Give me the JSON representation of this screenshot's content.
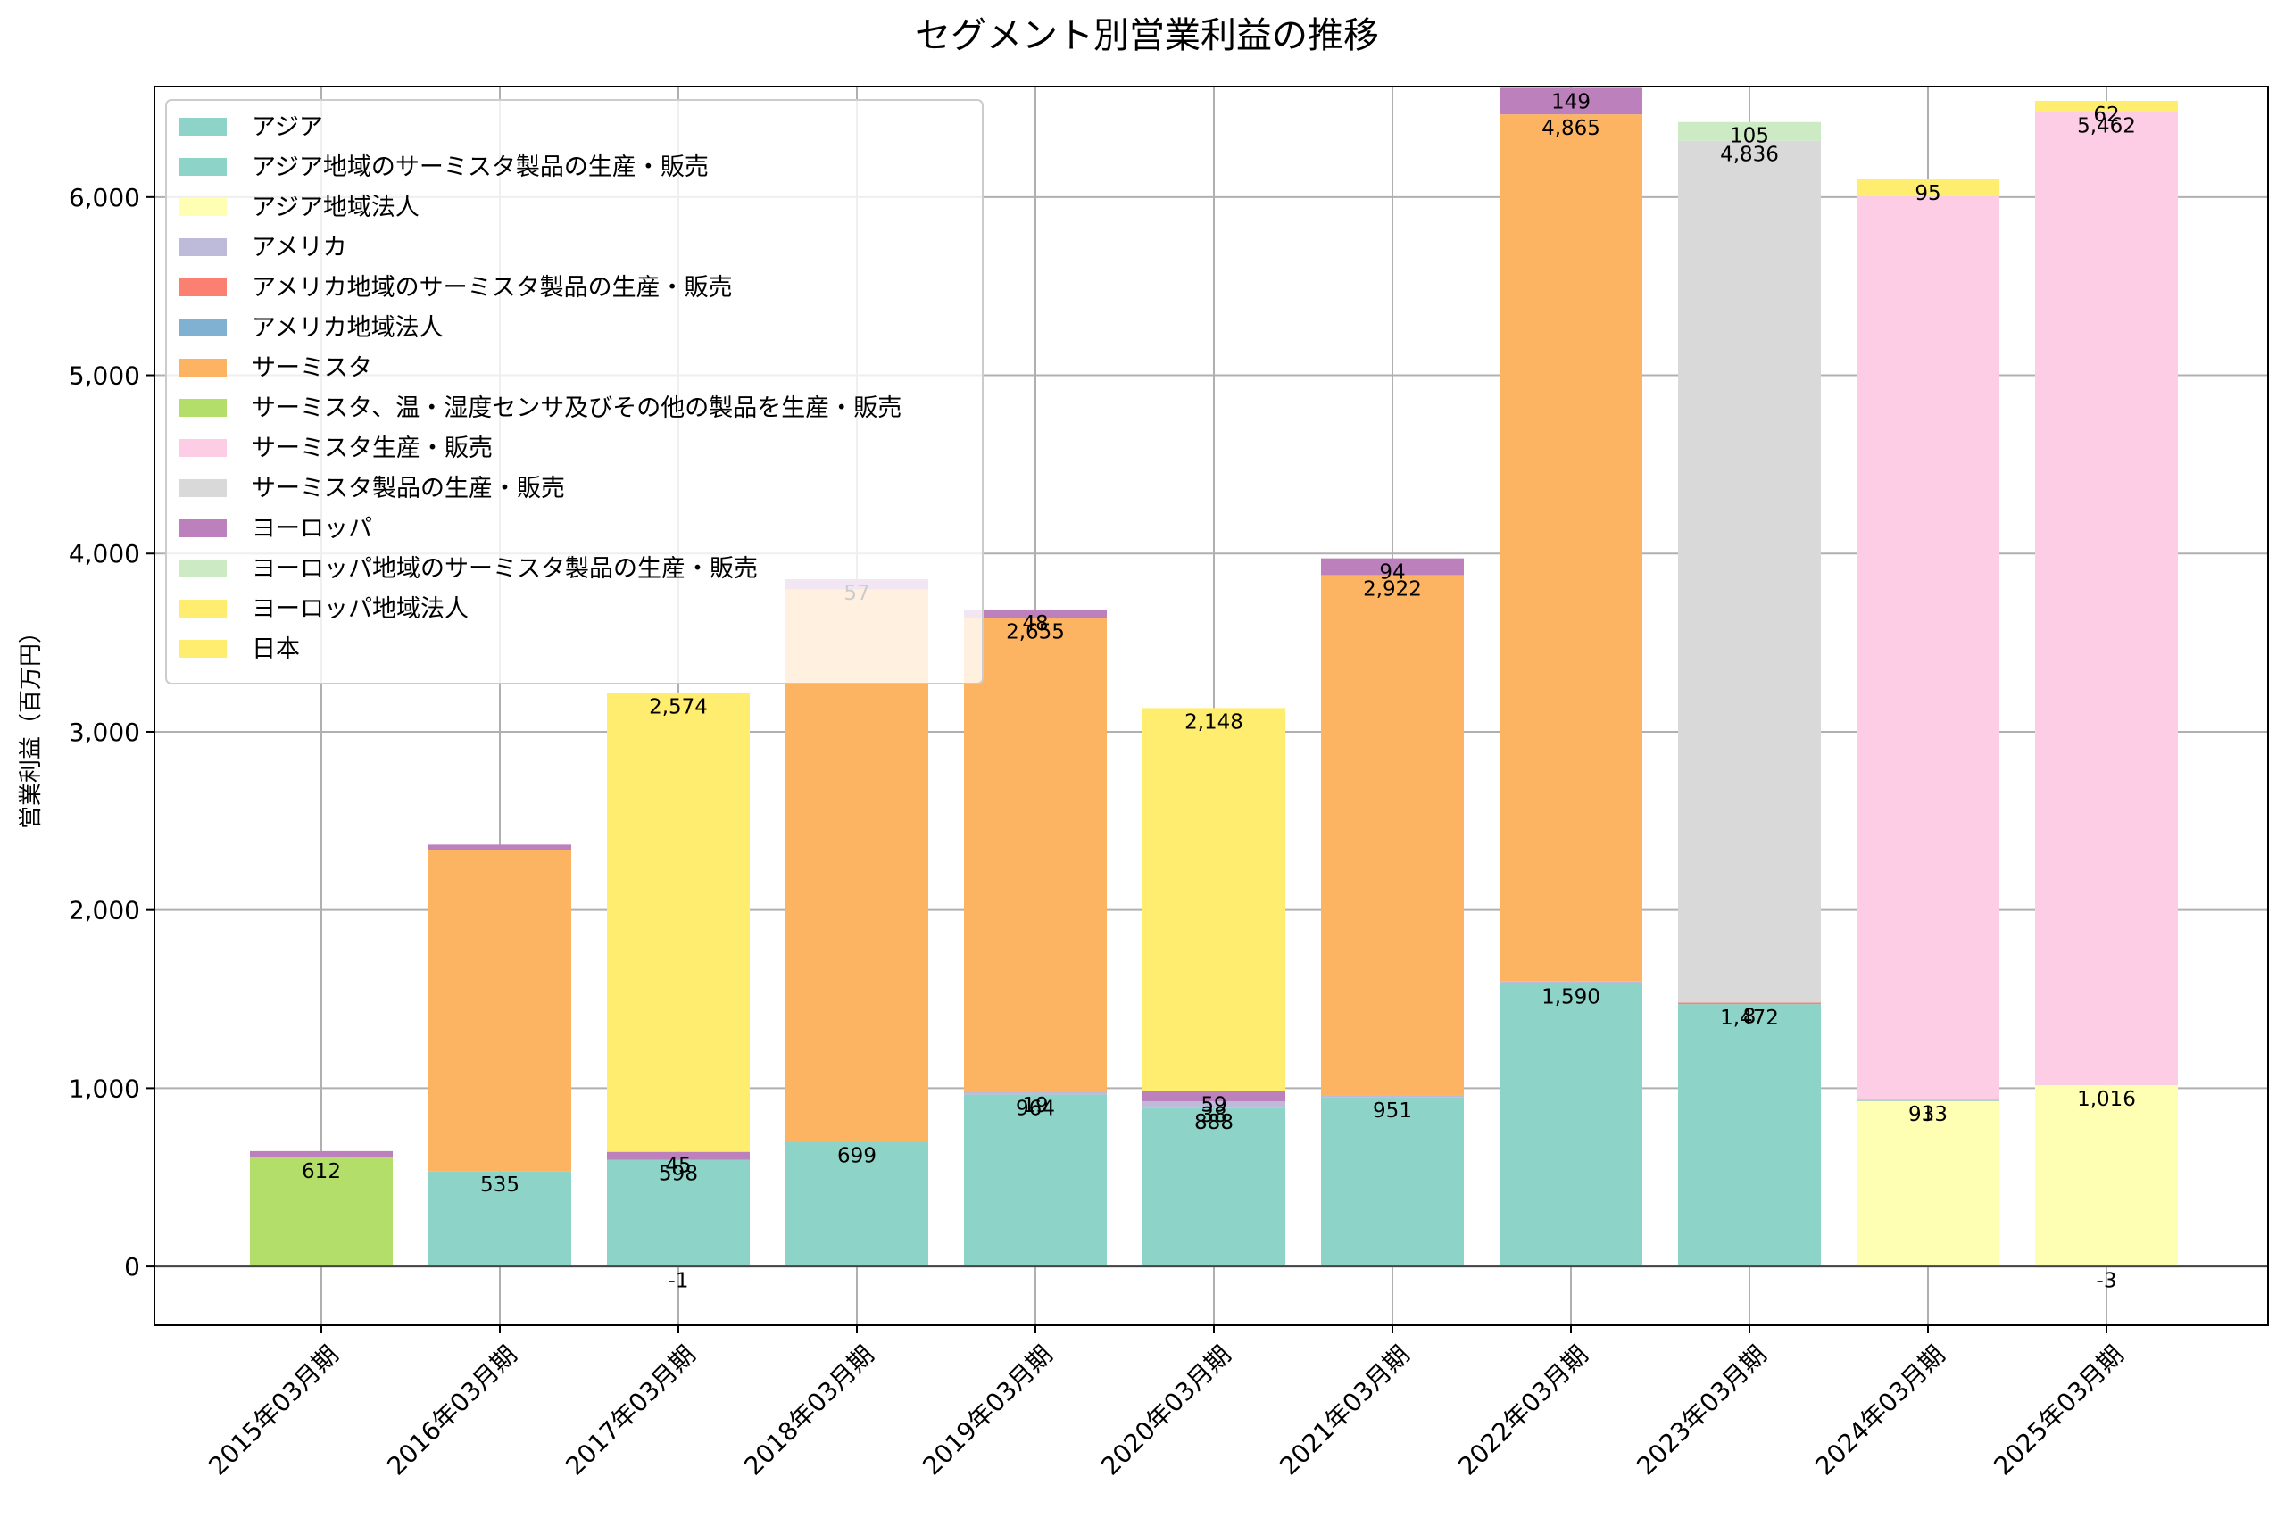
{
  "chart_data": {
    "type": "bar",
    "stacked": true,
    "title": "セグメント別営業利益の推移",
    "xlabel": "",
    "ylabel": "営業利益（百万円）",
    "ylim": [
      -330,
      6620
    ],
    "yticks": [
      0,
      1000,
      2000,
      3000,
      4000,
      5000,
      6000
    ],
    "ytick_labels": [
      "0",
      "1,000",
      "2,000",
      "3,000",
      "4,000",
      "5,000",
      "6,000"
    ],
    "grid": true,
    "legend_position": "top-left",
    "categories": [
      "2015年03月期",
      "2016年03月期",
      "2017年03月期",
      "2018年03月期",
      "2019年03月期",
      "2020年03月期",
      "2021年03月期",
      "2022年03月期",
      "2023年03月期",
      "2024年03月期",
      "2025年03月期"
    ],
    "series": [
      {
        "name": "アジア",
        "color": "#8dd3c7",
        "values": [
          null,
          535,
          598,
          699,
          964,
          888,
          951,
          1590,
          1472,
          null,
          null
        ]
      },
      {
        "name": "アジア地域のサーミスタ製品の生産・販売",
        "color": "#8dd3c7",
        "values": [
          null,
          null,
          null,
          null,
          null,
          null,
          null,
          null,
          null,
          null,
          null
        ]
      },
      {
        "name": "アジア地域法人",
        "color": "#ffffb3",
        "values": [
          null,
          null,
          null,
          null,
          null,
          null,
          null,
          null,
          null,
          933,
          1016
        ]
      },
      {
        "name": "アメリカ",
        "color": "#bebada",
        "values": [
          null,
          null,
          -1,
          null,
          19,
          38,
          6,
          9,
          null,
          null,
          null
        ]
      },
      {
        "name": "アメリカ地域のサーミスタ製品の生産・販売",
        "color": "#fb8072",
        "values": [
          null,
          null,
          null,
          null,
          null,
          null,
          null,
          null,
          8,
          null,
          null
        ]
      },
      {
        "name": "アメリカ地域法人",
        "color": "#80b1d3",
        "values": [
          null,
          null,
          null,
          null,
          null,
          null,
          null,
          null,
          null,
          1,
          -3
        ]
      },
      {
        "name": "サーミスタ",
        "color": "#fdb462",
        "values": [
          null,
          1802,
          null,
          3100,
          2655,
          null,
          2922,
          4865,
          null,
          null,
          null
        ]
      },
      {
        "name": "サーミスタ、温・湿度センサ及びその他の製品を生産・販売",
        "color": "#b3de69",
        "values": [
          612,
          null,
          null,
          null,
          null,
          null,
          null,
          null,
          null,
          null,
          null
        ]
      },
      {
        "name": "サーミスタ生産・販売",
        "color": "#fccde5",
        "values": [
          null,
          null,
          null,
          null,
          null,
          null,
          null,
          null,
          null,
          5070,
          5462
        ]
      },
      {
        "name": "サーミスタ製品の生産・販売",
        "color": "#d9d9d9",
        "values": [
          null,
          null,
          null,
          null,
          null,
          null,
          null,
          null,
          4836,
          null,
          null
        ]
      },
      {
        "name": "ヨーロッパ",
        "color": "#bc80bd",
        "values": [
          35,
          30,
          45,
          57,
          48,
          59,
          94,
          149,
          null,
          null,
          null
        ]
      },
      {
        "name": "ヨーロッパ地域のサーミスタ製品の生産・販売",
        "color": "#ccebc5",
        "values": [
          null,
          null,
          null,
          null,
          null,
          null,
          null,
          null,
          105,
          null,
          null
        ]
      },
      {
        "name": "ヨーロッパ地域法人",
        "color": "#ffed6f",
        "values": [
          null,
          null,
          null,
          null,
          null,
          null,
          null,
          null,
          null,
          95,
          62
        ]
      },
      {
        "name": "日本",
        "color": "#ffed6f",
        "values": [
          null,
          null,
          2574,
          null,
          null,
          2148,
          null,
          null,
          null,
          null,
          null
        ]
      }
    ],
    "data_labels": [
      {
        "category": 0,
        "series": 7,
        "text": "612"
      },
      {
        "category": 1,
        "series": 0,
        "text": "535"
      },
      {
        "category": 2,
        "series": 0,
        "text": "598"
      },
      {
        "category": 2,
        "series": 3,
        "text": "-1"
      },
      {
        "category": 2,
        "series": 10,
        "text": "45"
      },
      {
        "category": 2,
        "series": 13,
        "text": "2,574"
      },
      {
        "category": 3,
        "series": 0,
        "text": "699"
      },
      {
        "category": 3,
        "series": 10,
        "text": "57"
      },
      {
        "category": 4,
        "series": 0,
        "text": "964"
      },
      {
        "category": 4,
        "series": 3,
        "text": "19"
      },
      {
        "category": 4,
        "series": 6,
        "text": "2,655"
      },
      {
        "category": 4,
        "series": 10,
        "text": "48"
      },
      {
        "category": 5,
        "series": 0,
        "text": "888"
      },
      {
        "category": 5,
        "series": 3,
        "text": "38"
      },
      {
        "category": 5,
        "series": 10,
        "text": "59"
      },
      {
        "category": 5,
        "series": 13,
        "text": "2,148"
      },
      {
        "category": 6,
        "series": 0,
        "text": "951"
      },
      {
        "category": 6,
        "series": 6,
        "text": "2,922"
      },
      {
        "category": 6,
        "series": 10,
        "text": "94"
      },
      {
        "category": 7,
        "series": 0,
        "text": "1,590"
      },
      {
        "category": 7,
        "series": 6,
        "text": "4,865"
      },
      {
        "category": 7,
        "series": 10,
        "text": "149"
      },
      {
        "category": 8,
        "series": 0,
        "text": "1,472"
      },
      {
        "category": 8,
        "series": 4,
        "text": "8"
      },
      {
        "category": 8,
        "series": 9,
        "text": "4,836"
      },
      {
        "category": 8,
        "series": 11,
        "text": "105"
      },
      {
        "category": 9,
        "series": 2,
        "text": "933"
      },
      {
        "category": 9,
        "series": 5,
        "text": "1"
      },
      {
        "category": 9,
        "series": 12,
        "text": "95"
      },
      {
        "category": 10,
        "series": 2,
        "text": "1,016"
      },
      {
        "category": 10,
        "series": 5,
        "text": "-3"
      },
      {
        "category": 10,
        "series": 8,
        "text": "5,462"
      },
      {
        "category": 10,
        "series": 12,
        "text": "62"
      }
    ]
  }
}
